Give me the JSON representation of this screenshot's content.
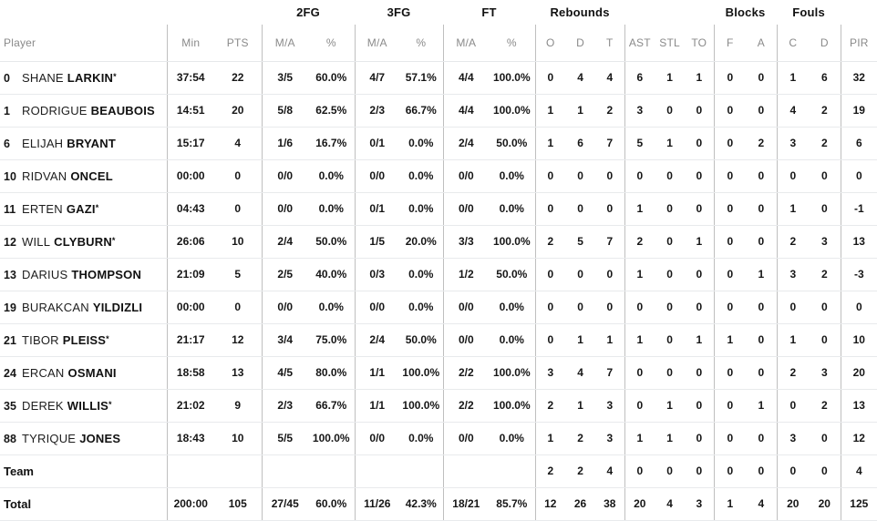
{
  "table": {
    "groups": {
      "fg2": "2FG",
      "fg3": "3FG",
      "ft": "FT",
      "rebounds": "Rebounds",
      "blocks": "Blocks",
      "fouls": "Fouls"
    },
    "col_headers": [
      "Player",
      "Min",
      "PTS",
      "M/A",
      "%",
      "M/A",
      "%",
      "M/A",
      "%",
      "O",
      "D",
      "T",
      "AST",
      "STL",
      "TO",
      "F",
      "A",
      "C",
      "D",
      "PIR"
    ],
    "rows": [
      {
        "type": "player",
        "num": "0",
        "first": "SHANE",
        "last": "LARKIN",
        "star": "*",
        "stats": [
          "37:54",
          "22",
          "3/5",
          "60.0%",
          "4/7",
          "57.1%",
          "4/4",
          "100.0%",
          "0",
          "4",
          "4",
          "6",
          "1",
          "1",
          "0",
          "0",
          "1",
          "6",
          "32"
        ]
      },
      {
        "type": "player",
        "num": "1",
        "first": "RODRIGUE",
        "last": "BEAUBOIS",
        "star": "",
        "stats": [
          "14:51",
          "20",
          "5/8",
          "62.5%",
          "2/3",
          "66.7%",
          "4/4",
          "100.0%",
          "1",
          "1",
          "2",
          "3",
          "0",
          "0",
          "0",
          "0",
          "4",
          "2",
          "19"
        ]
      },
      {
        "type": "player",
        "num": "6",
        "first": "ELIJAH",
        "last": "BRYANT",
        "star": "",
        "stats": [
          "15:17",
          "4",
          "1/6",
          "16.7%",
          "0/1",
          "0.0%",
          "2/4",
          "50.0%",
          "1",
          "6",
          "7",
          "5",
          "1",
          "0",
          "0",
          "2",
          "3",
          "2",
          "6"
        ]
      },
      {
        "type": "player",
        "num": "10",
        "first": "RIDVAN",
        "last": "ONCEL",
        "star": "",
        "stats": [
          "00:00",
          "0",
          "0/0",
          "0.0%",
          "0/0",
          "0.0%",
          "0/0",
          "0.0%",
          "0",
          "0",
          "0",
          "0",
          "0",
          "0",
          "0",
          "0",
          "0",
          "0",
          "0"
        ]
      },
      {
        "type": "player",
        "num": "11",
        "first": "ERTEN",
        "last": "GAZI",
        "star": "*",
        "stats": [
          "04:43",
          "0",
          "0/0",
          "0.0%",
          "0/1",
          "0.0%",
          "0/0",
          "0.0%",
          "0",
          "0",
          "0",
          "1",
          "0",
          "0",
          "0",
          "0",
          "1",
          "0",
          "-1"
        ]
      },
      {
        "type": "player",
        "num": "12",
        "first": "WILL",
        "last": "CLYBURN",
        "star": "*",
        "stats": [
          "26:06",
          "10",
          "2/4",
          "50.0%",
          "1/5",
          "20.0%",
          "3/3",
          "100.0%",
          "2",
          "5",
          "7",
          "2",
          "0",
          "1",
          "0",
          "0",
          "2",
          "3",
          "13"
        ]
      },
      {
        "type": "player",
        "num": "13",
        "first": "DARIUS",
        "last": "THOMPSON",
        "star": "",
        "stats": [
          "21:09",
          "5",
          "2/5",
          "40.0%",
          "0/3",
          "0.0%",
          "1/2",
          "50.0%",
          "0",
          "0",
          "0",
          "1",
          "0",
          "0",
          "0",
          "1",
          "3",
          "2",
          "-3"
        ]
      },
      {
        "type": "player",
        "num": "19",
        "first": "BURAKCAN",
        "last": "YILDIZLI",
        "star": "",
        "stats": [
          "00:00",
          "0",
          "0/0",
          "0.0%",
          "0/0",
          "0.0%",
          "0/0",
          "0.0%",
          "0",
          "0",
          "0",
          "0",
          "0",
          "0",
          "0",
          "0",
          "0",
          "0",
          "0"
        ]
      },
      {
        "type": "player",
        "num": "21",
        "first": "TIBOR",
        "last": "PLEISS",
        "star": "*",
        "stats": [
          "21:17",
          "12",
          "3/4",
          "75.0%",
          "2/4",
          "50.0%",
          "0/0",
          "0.0%",
          "0",
          "1",
          "1",
          "1",
          "0",
          "1",
          "1",
          "0",
          "1",
          "0",
          "10"
        ]
      },
      {
        "type": "player",
        "num": "24",
        "first": "ERCAN",
        "last": "OSMANI",
        "star": "",
        "stats": [
          "18:58",
          "13",
          "4/5",
          "80.0%",
          "1/1",
          "100.0%",
          "2/2",
          "100.0%",
          "3",
          "4",
          "7",
          "0",
          "0",
          "0",
          "0",
          "0",
          "2",
          "3",
          "20"
        ]
      },
      {
        "type": "player",
        "num": "35",
        "first": "DEREK",
        "last": "WILLIS",
        "star": "*",
        "stats": [
          "21:02",
          "9",
          "2/3",
          "66.7%",
          "1/1",
          "100.0%",
          "2/2",
          "100.0%",
          "2",
          "1",
          "3",
          "0",
          "1",
          "0",
          "0",
          "1",
          "0",
          "2",
          "13"
        ]
      },
      {
        "type": "player",
        "num": "88",
        "first": "TYRIQUE",
        "last": "JONES",
        "star": "",
        "stats": [
          "18:43",
          "10",
          "5/5",
          "100.0%",
          "0/0",
          "0.0%",
          "0/0",
          "0.0%",
          "1",
          "2",
          "3",
          "1",
          "1",
          "0",
          "0",
          "0",
          "3",
          "0",
          "12"
        ]
      },
      {
        "type": "team",
        "label": "Team",
        "stats": [
          "",
          "",
          "",
          "",
          "",
          "",
          "",
          "",
          "2",
          "2",
          "4",
          "0",
          "0",
          "0",
          "0",
          "0",
          "0",
          "0",
          "4"
        ]
      },
      {
        "type": "total",
        "label": "Total",
        "stats": [
          "200:00",
          "105",
          "27/45",
          "60.0%",
          "11/26",
          "42.3%",
          "18/21",
          "85.7%",
          "12",
          "26",
          "38",
          "20",
          "4",
          "3",
          "1",
          "4",
          "20",
          "20",
          "125"
        ]
      }
    ]
  }
}
